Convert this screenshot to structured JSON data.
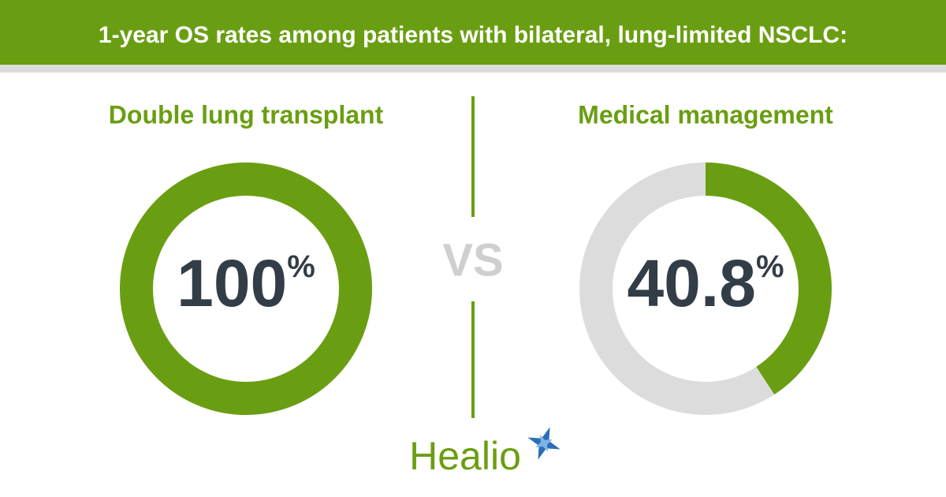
{
  "title": "1-year OS rates among patients with bilateral, lung-limited NSCLC:",
  "separator": "VS",
  "brand": "Healio",
  "chart_data": [
    {
      "type": "donut",
      "title": "Double lung transplant",
      "values": [
        100
      ],
      "value_labels": [
        "100"
      ],
      "unit": "%",
      "ylim": [
        0,
        100
      ],
      "color": "#6a9e12",
      "track_color": "#dcdcdc"
    },
    {
      "type": "donut",
      "title": "Medical management",
      "values": [
        40.8
      ],
      "value_labels": [
        "40.8"
      ],
      "unit": "%",
      "ylim": [
        0,
        100
      ],
      "color": "#6a9e12",
      "track_color": "#dcdcdc"
    }
  ]
}
